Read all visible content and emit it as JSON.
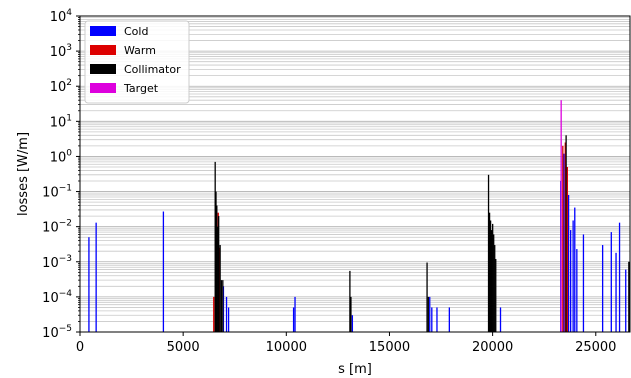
{
  "chart_data": {
    "type": "bar",
    "xlabel": "s [m]",
    "ylabel": "losses [W/m]",
    "yscale": "log",
    "xlim": [
      0,
      26659
    ],
    "ylim": [
      1e-05,
      10000.0
    ],
    "x_ticks": [
      0,
      5000,
      10000,
      15000,
      20000,
      25000
    ],
    "x_tick_labels": [
      "0",
      "5000",
      "10000",
      "15000",
      "20000",
      "25000"
    ],
    "y_ticks": [
      1e-05,
      0.0001,
      0.001,
      0.01,
      0.1,
      1,
      10,
      100,
      1000,
      10000
    ],
    "y_tick_labels": [
      {
        "base": "10",
        "exp": "−5"
      },
      {
        "base": "10",
        "exp": "−4"
      },
      {
        "base": "10",
        "exp": "−3"
      },
      {
        "base": "10",
        "exp": "−2"
      },
      {
        "base": "10",
        "exp": "−1"
      },
      {
        "base": "10",
        "exp": "0"
      },
      {
        "base": "10",
        "exp": "1"
      },
      {
        "base": "10",
        "exp": "2"
      },
      {
        "base": "10",
        "exp": "3"
      },
      {
        "base": "10",
        "exp": "4"
      }
    ],
    "grid": "horizontal-minor",
    "legend_position": "top-left",
    "series": [
      {
        "name": "Cold",
        "color": "#0000ff",
        "points": [
          {
            "x": 430,
            "y": 0.005
          },
          {
            "x": 780,
            "y": 0.013
          },
          {
            "x": 4040,
            "y": 0.027
          },
          {
            "x": 6950,
            "y": 0.0002
          },
          {
            "x": 7100,
            "y": 0.0001
          },
          {
            "x": 7200,
            "y": 5e-05
          },
          {
            "x": 10350,
            "y": 5e-05
          },
          {
            "x": 10420,
            "y": 0.0001
          },
          {
            "x": 13200,
            "y": 3e-05
          },
          {
            "x": 16950,
            "y": 0.0001
          },
          {
            "x": 17050,
            "y": 5e-05
          },
          {
            "x": 17300,
            "y": 5e-05
          },
          {
            "x": 17900,
            "y": 5e-05
          },
          {
            "x": 20380,
            "y": 5e-05
          },
          {
            "x": 23300,
            "y": 0.2
          },
          {
            "x": 23450,
            "y": 1.2
          },
          {
            "x": 23550,
            "y": 0.6
          },
          {
            "x": 23680,
            "y": 0.08
          },
          {
            "x": 23780,
            "y": 0.008
          },
          {
            "x": 23900,
            "y": 0.015
          },
          {
            "x": 23980,
            "y": 0.035
          },
          {
            "x": 24080,
            "y": 0.0023
          },
          {
            "x": 24400,
            "y": 0.006
          },
          {
            "x": 25330,
            "y": 0.003
          },
          {
            "x": 25750,
            "y": 0.007
          },
          {
            "x": 25980,
            "y": 0.0018
          },
          {
            "x": 26150,
            "y": 0.013
          },
          {
            "x": 26450,
            "y": 0.0006
          }
        ]
      },
      {
        "name": "Warm",
        "color": "#dd0000",
        "points": [
          {
            "x": 6480,
            "y": 0.0001
          },
          {
            "x": 6600,
            "y": 0.005
          },
          {
            "x": 6700,
            "y": 0.025
          },
          {
            "x": 6760,
            "y": 0.0025
          },
          {
            "x": 23400,
            "y": 2.0
          },
          {
            "x": 23520,
            "y": 2.5
          },
          {
            "x": 23620,
            "y": 0.5
          }
        ]
      },
      {
        "name": "Collimator",
        "color": "#000000",
        "points": [
          {
            "x": 6550,
            "y": 0.7
          },
          {
            "x": 6590,
            "y": 0.1
          },
          {
            "x": 6630,
            "y": 0.04
          },
          {
            "x": 6680,
            "y": 0.01
          },
          {
            "x": 6720,
            "y": 0.02
          },
          {
            "x": 6790,
            "y": 0.003
          },
          {
            "x": 6850,
            "y": 0.0003
          },
          {
            "x": 6920,
            "y": 0.0003
          },
          {
            "x": 13080,
            "y": 0.00055
          },
          {
            "x": 13130,
            "y": 0.0001
          },
          {
            "x": 16820,
            "y": 0.00095
          },
          {
            "x": 16880,
            "y": 0.0001
          },
          {
            "x": 19800,
            "y": 0.3
          },
          {
            "x": 19850,
            "y": 0.025
          },
          {
            "x": 19900,
            "y": 0.015
          },
          {
            "x": 19950,
            "y": 0.008
          },
          {
            "x": 20000,
            "y": 0.012
          },
          {
            "x": 20050,
            "y": 0.006
          },
          {
            "x": 20100,
            "y": 0.003
          },
          {
            "x": 20150,
            "y": 0.0012
          },
          {
            "x": 23560,
            "y": 4.0
          },
          {
            "x": 26600,
            "y": 0.001
          }
        ]
      },
      {
        "name": "Target",
        "color": "#dd00dd",
        "points": [
          {
            "x": 23320,
            "y": 40.0
          }
        ]
      }
    ]
  }
}
